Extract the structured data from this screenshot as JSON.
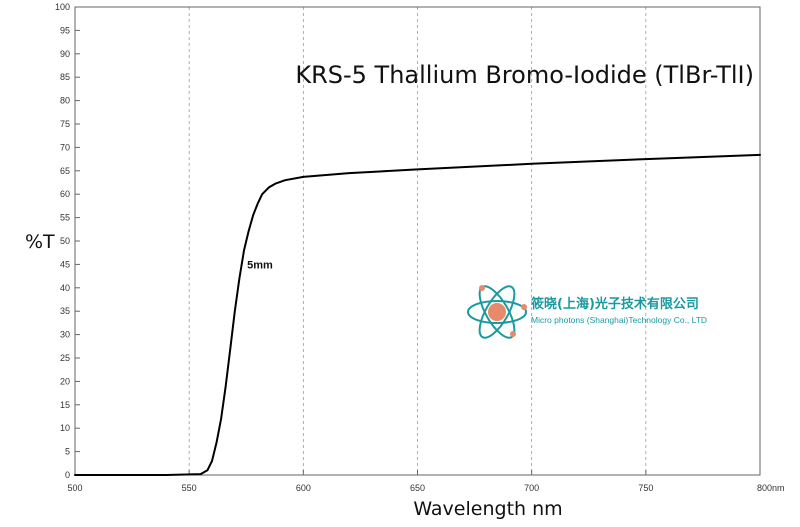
{
  "chart_data": {
    "type": "line",
    "title": "KRS-5 Thallium Bromo-Iodide (TlBr-TlI)",
    "xlabel": "Wavelength nm",
    "ylabel": "%T",
    "xlim": [
      500,
      800
    ],
    "ylim": [
      0,
      100
    ],
    "x_ticks": [
      500,
      550,
      600,
      650,
      700,
      750,
      800
    ],
    "x_tick_labels": [
      "500",
      "550",
      "600",
      "650",
      "700",
      "750",
      "800nm"
    ],
    "y_ticks": [
      0,
      5,
      10,
      15,
      20,
      25,
      30,
      35,
      40,
      45,
      50,
      55,
      60,
      65,
      70,
      75,
      80,
      85,
      90,
      95,
      100
    ],
    "grid": "dashed vertical at major x ticks; tick marks on y axis",
    "series": [
      {
        "name": "5mm",
        "color": "#000000",
        "points": [
          [
            500,
            0
          ],
          [
            540,
            0
          ],
          [
            555,
            0.2
          ],
          [
            558,
            1
          ],
          [
            560,
            3
          ],
          [
            562,
            7
          ],
          [
            564,
            12
          ],
          [
            566,
            19
          ],
          [
            568,
            27
          ],
          [
            570,
            35
          ],
          [
            572,
            42
          ],
          [
            574,
            48
          ],
          [
            576,
            52
          ],
          [
            578,
            55.5
          ],
          [
            580,
            58
          ],
          [
            582,
            60
          ],
          [
            585,
            61.5
          ],
          [
            588,
            62.3
          ],
          [
            592,
            63
          ],
          [
            600,
            63.7
          ],
          [
            620,
            64.5
          ],
          [
            650,
            65.3
          ],
          [
            700,
            66.5
          ],
          [
            750,
            67.5
          ],
          [
            800,
            68.4
          ]
        ]
      }
    ],
    "annotations": [
      {
        "text": "5mm",
        "x": 581,
        "y": 45
      }
    ]
  },
  "logo": {
    "name_cn": "筱晓(上海)光子技术有限公司",
    "name_en": "Micro photons (Shanghai)Technology Co., LTD",
    "accent_color": "#1a9aa0",
    "core_color": "#e8896a"
  }
}
